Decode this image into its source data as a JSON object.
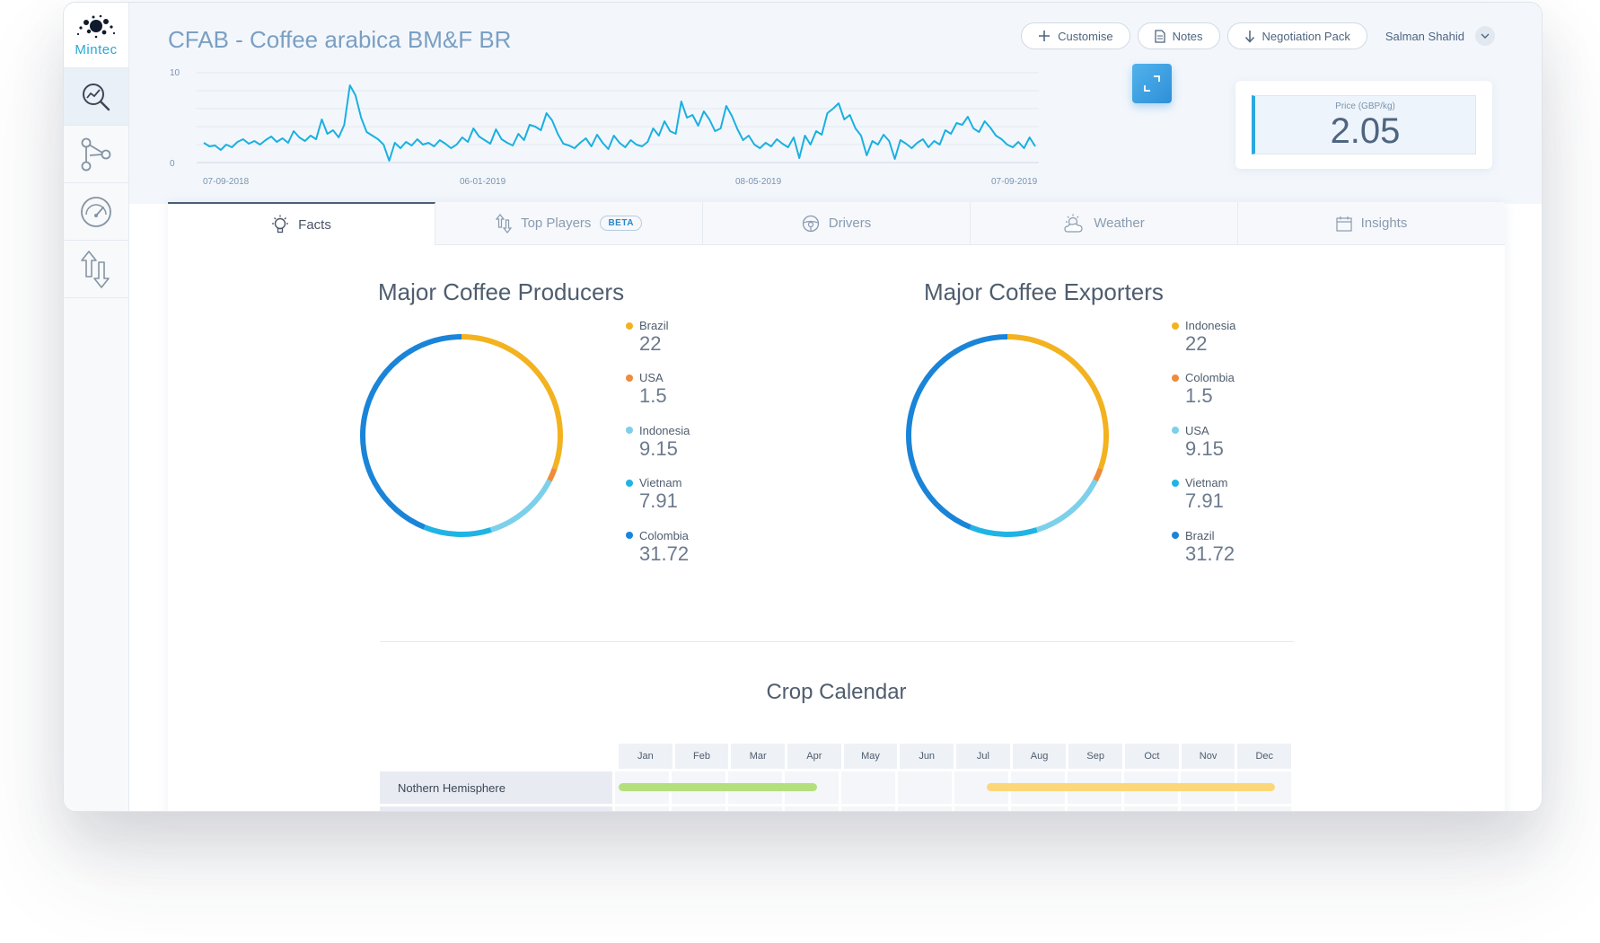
{
  "app": {
    "logo_text": "Mintec"
  },
  "sidebar": {
    "items": [
      {
        "name": "analysis",
        "icon": "chart-search-icon",
        "active": true
      },
      {
        "name": "network",
        "icon": "network-icon",
        "active": false
      },
      {
        "name": "gauge",
        "icon": "gauge-icon",
        "active": false
      },
      {
        "name": "transfer",
        "icon": "up-down-arrows-icon",
        "active": false
      }
    ]
  },
  "header": {
    "title": "CFAB - Coffee arabica BM&F BR",
    "actions": {
      "customise": "Customise",
      "notes": "Notes",
      "negotiation_pack": "Negotiation Pack"
    },
    "user": "Salman Shahid"
  },
  "price": {
    "label": "Price (GBP/kg)",
    "value": "2.05"
  },
  "chart_data": [
    {
      "type": "line",
      "title": "",
      "xlabel": "",
      "ylabel": "",
      "ylim": [
        0,
        10
      ],
      "y_ticks": [
        "10",
        "0"
      ],
      "x_ticks": [
        "07-09-2018",
        "06-01-2019",
        "08-05-2019",
        "07-09-2019"
      ],
      "series": [
        {
          "values": [
            2.2,
            1.8,
            1.9,
            1.4,
            2.0,
            1.7,
            2.3,
            2.6,
            2.1,
            2.4,
            2.0,
            2.5,
            2.9,
            2.3,
            2.7,
            2.2,
            3.5,
            2.8,
            2.4,
            3.0,
            2.6,
            4.8,
            3.2,
            3.6,
            2.8,
            4.2,
            8.6,
            7.5,
            5.0,
            3.4,
            3.0,
            2.6,
            2.0,
            0.2,
            2.2,
            1.6,
            2.3,
            1.9,
            2.6,
            2.0,
            2.2,
            1.8,
            2.5,
            2.1,
            1.6,
            2.0,
            2.8,
            2.3,
            3.8,
            2.9,
            2.5,
            2.1,
            3.7,
            2.6,
            2.2,
            1.9,
            3.2,
            2.5,
            4.2,
            4.0,
            3.6,
            5.5,
            4.7,
            3.2,
            2.1,
            1.9,
            1.6,
            2.2,
            2.7,
            1.8,
            3.1,
            2.2,
            1.5,
            3.0,
            2.2,
            1.7,
            2.5,
            2.0,
            1.8,
            2.3,
            3.8,
            3.0,
            4.6,
            3.5,
            3.2,
            6.8,
            5.0,
            5.3,
            4.1,
            5.7,
            4.8,
            3.5,
            3.8,
            6.3,
            5.2,
            3.7,
            2.5,
            3.0,
            2.0,
            1.6,
            2.2,
            1.8,
            2.6,
            2.1,
            1.7,
            2.8,
            0.5,
            3.0,
            2.0,
            3.5,
            3.1,
            5.5,
            6.0,
            6.6,
            4.8,
            5.3,
            3.8,
            3.0,
            0.8,
            2.4,
            2.0,
            3.1,
            2.4,
            0.4,
            2.5,
            2.1,
            1.6,
            2.2,
            2.6,
            1.7,
            2.4,
            2.0,
            3.6,
            3.2,
            4.4,
            4.2,
            5.1,
            3.8,
            3.4,
            4.6,
            3.9,
            3.0,
            2.6,
            2.0,
            1.7,
            2.3,
            1.6,
            2.8,
            1.8
          ]
        }
      ]
    },
    {
      "type": "pie",
      "title": "Major Coffee Producers",
      "categories": [
        "Brazil",
        "USA",
        "Indonesia",
        "Vietnam",
        "Colombia"
      ],
      "values": [
        22,
        1.5,
        9.15,
        7.91,
        31.72
      ],
      "display_values": [
        "22",
        "1.5",
        "9.15",
        "7.91",
        "31.72"
      ],
      "colors": [
        "#f3b21f",
        "#ee8c3a",
        "#7dd0ea",
        "#20b4e4",
        "#1a84d8"
      ]
    },
    {
      "type": "pie",
      "title": "Major Coffee Exporters",
      "categories": [
        "Indonesia",
        "Colombia",
        "USA",
        "Vietnam",
        "Brazil"
      ],
      "values": [
        22,
        1.5,
        9.15,
        7.91,
        31.72
      ],
      "display_values": [
        "22",
        "1.5",
        "9.15",
        "7.91",
        "31.72"
      ],
      "colors": [
        "#f3b21f",
        "#ee8c3a",
        "#7dd0ea",
        "#20b4e4",
        "#1a84d8"
      ]
    }
  ],
  "tabs": [
    {
      "label": "Facts",
      "icon": "lightbulb-icon",
      "active": true
    },
    {
      "label": "Top Players",
      "icon": "arrows-icon",
      "badge": "BETA"
    },
    {
      "label": "Drivers",
      "icon": "steering-wheel-icon"
    },
    {
      "label": "Weather",
      "icon": "sun-cloud-icon"
    },
    {
      "label": "Insights",
      "icon": "calendar-icon"
    }
  ],
  "crop_calendar": {
    "title": "Crop Calendar",
    "months": [
      "Jan",
      "Feb",
      "Mar",
      "Apr",
      "May",
      "Jun",
      "Jul",
      "Aug",
      "Sep",
      "Oct",
      "Nov",
      "Dec"
    ],
    "rows": [
      {
        "label": "Nothern Hemisphere",
        "bars": [
          {
            "start_month": 0,
            "end_month": 3.5,
            "color": "#b3e07d"
          },
          {
            "start_month": 6.5,
            "end_month": 11.6,
            "color": "#fcd77a"
          }
        ]
      },
      {
        "label": "",
        "bars": []
      }
    ]
  }
}
